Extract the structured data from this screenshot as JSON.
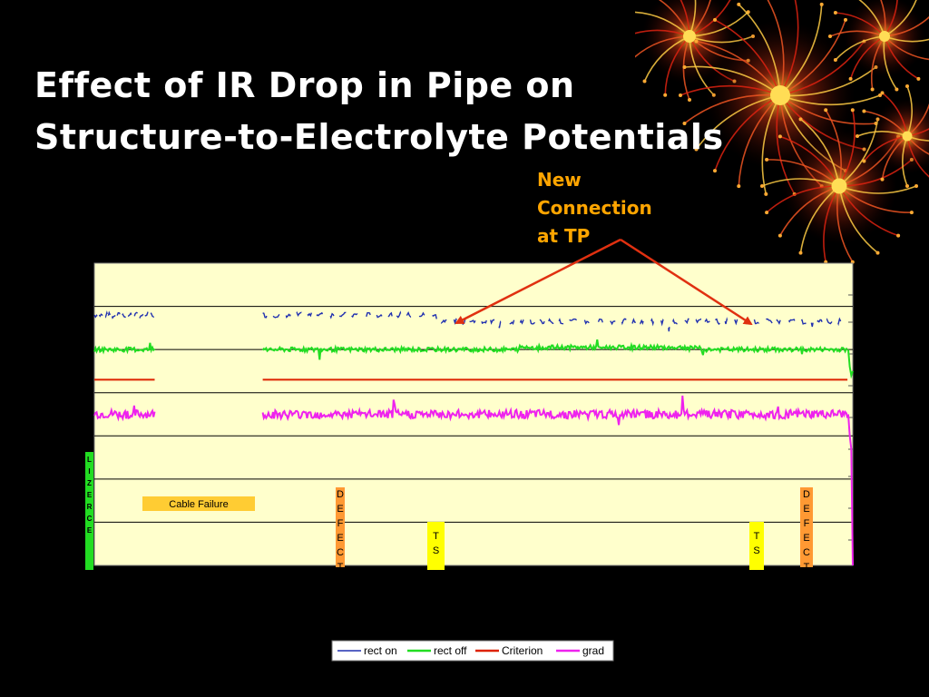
{
  "title": {
    "line1": "Effect of IR Drop in Pipe on",
    "line2": "Structure-to-Electrolyte Potentials"
  },
  "callout": {
    "line1": "New",
    "line2": "Connection",
    "line3": "at TP",
    "color": "#ffa500",
    "arrow_color": "#e03010"
  },
  "chart_data": {
    "type": "line",
    "background": "#ffffcc",
    "grid": true,
    "gridlines": 7,
    "x_domain": [
      0,
      1000
    ],
    "y_domain": [
      0,
      7
    ],
    "gap": [
      80,
      222
    ],
    "series": [
      {
        "name": "rect on",
        "color": "#2030b0",
        "style": "dashed",
        "level": 5.8,
        "noise": 0.06
      },
      {
        "name": "rect off",
        "color": "#22dd22",
        "style": "solid",
        "level": 5.0,
        "noise": 0.05
      },
      {
        "name": "Criterion",
        "color": "#dd2200",
        "style": "solid",
        "level": 4.3,
        "noise": 0
      },
      {
        "name": "grad",
        "color": "#ee22ee",
        "style": "solid",
        "level": 3.5,
        "noise": 0.1
      }
    ],
    "annotations": [
      {
        "text": "Cable Failure",
        "color": "#ffcc33"
      },
      {
        "text": "DEFECT",
        "color": "#ff9933"
      },
      {
        "text": "TS",
        "color": "#ffff00"
      },
      {
        "text": "TS",
        "color": "#ffff00"
      },
      {
        "text": "DEFECT",
        "color": "#ff9933"
      },
      {
        "text": "LIZERCE",
        "color": "#22dd22"
      }
    ]
  },
  "legend": {
    "items": [
      {
        "label": "rect on",
        "color": "#2030b0"
      },
      {
        "label": "rect off",
        "color": "#22dd22"
      },
      {
        "label": "Criterion",
        "color": "#dd2200"
      },
      {
        "label": "grad",
        "color": "#ee22ee"
      }
    ]
  }
}
